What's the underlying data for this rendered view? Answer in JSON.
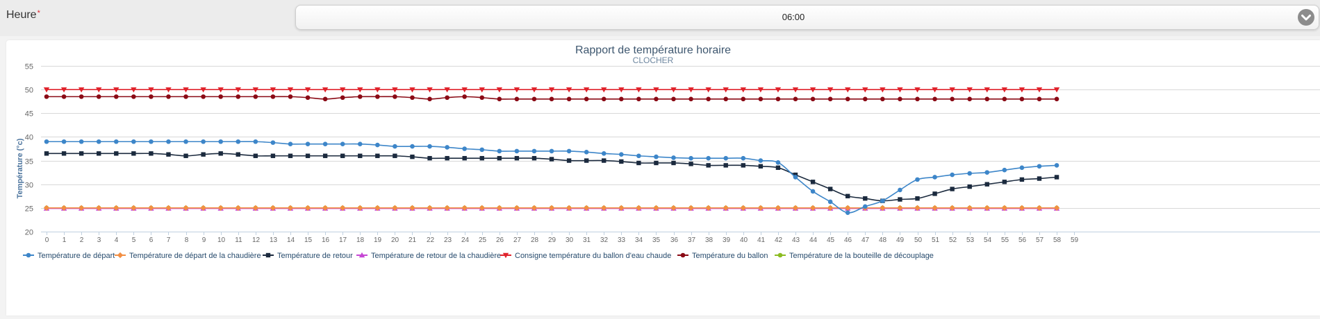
{
  "form": {
    "hour_label": "Heure",
    "required_mark": "*",
    "hour_value": "06:00",
    "chevron_icon": "chevron-down-icon"
  },
  "chart_data": {
    "type": "line",
    "title": "Rapport de température horaire",
    "subtitle": "CLOCHER",
    "xlabel": "",
    "ylabel": "Température (°c)",
    "x": [
      0,
      1,
      2,
      3,
      4,
      5,
      6,
      7,
      8,
      9,
      10,
      11,
      12,
      13,
      14,
      15,
      16,
      17,
      18,
      19,
      20,
      21,
      22,
      23,
      24,
      25,
      26,
      27,
      28,
      29,
      30,
      31,
      32,
      33,
      34,
      35,
      36,
      37,
      38,
      39,
      40,
      41,
      42,
      43,
      44,
      45,
      46,
      47,
      48,
      49,
      50,
      51,
      52,
      53,
      54,
      55,
      56,
      57,
      58
    ],
    "xticks": [
      0,
      1,
      2,
      3,
      4,
      5,
      6,
      7,
      8,
      9,
      10,
      11,
      12,
      13,
      14,
      15,
      16,
      17,
      18,
      19,
      20,
      21,
      22,
      23,
      24,
      25,
      26,
      27,
      28,
      29,
      30,
      31,
      32,
      33,
      34,
      35,
      36,
      37,
      38,
      39,
      40,
      41,
      42,
      43,
      44,
      45,
      46,
      47,
      48,
      49,
      50,
      51,
      52,
      53,
      54,
      55,
      56,
      57,
      58,
      59
    ],
    "xlim": [
      -0.5,
      59.5
    ],
    "ylim": [
      20,
      55
    ],
    "yticks": [
      20,
      25,
      30,
      35,
      40,
      45,
      50,
      55
    ],
    "grid": true,
    "legend_position": "bottom",
    "series": [
      {
        "name": "Température de la bouteille de découplage",
        "color": "#8bbc21",
        "marker": "circle",
        "values": [
          25,
          25,
          25,
          25,
          25,
          25,
          25,
          25,
          25,
          25,
          25,
          25,
          25,
          25,
          25,
          25,
          25,
          25,
          25,
          25,
          25,
          25,
          25,
          25,
          25,
          25,
          25,
          25,
          25,
          25,
          25,
          25,
          25,
          25,
          25,
          25,
          25,
          25,
          25,
          25,
          25,
          25,
          25,
          25,
          25,
          25,
          25,
          25,
          25,
          25,
          25,
          25,
          25,
          25,
          25,
          25,
          25,
          25,
          25
        ]
      },
      {
        "name": "Température de retour de la chaudière",
        "color": "#c646d4",
        "marker": "triangle",
        "values": [
          24.9,
          24.9,
          24.9,
          24.9,
          24.9,
          24.9,
          24.9,
          24.9,
          24.9,
          24.9,
          24.9,
          24.9,
          24.9,
          24.9,
          24.9,
          24.9,
          24.9,
          24.9,
          24.9,
          24.9,
          24.9,
          24.9,
          24.9,
          24.9,
          24.9,
          24.9,
          24.9,
          24.9,
          24.9,
          24.9,
          24.9,
          24.9,
          24.9,
          24.9,
          24.9,
          24.9,
          24.9,
          24.9,
          24.9,
          24.9,
          24.9,
          24.9,
          24.9,
          24.9,
          24.9,
          24.9,
          24.9,
          24.9,
          24.9,
          24.9,
          24.9,
          24.9,
          24.9,
          24.9,
          24.9,
          24.9,
          24.9,
          24.9,
          24.9
        ]
      },
      {
        "name": "Température de départ de la chaudière",
        "color": "#f28f43",
        "marker": "diamond",
        "values": [
          25,
          25,
          25,
          25,
          25,
          25,
          25,
          25,
          25,
          25,
          25,
          25,
          25,
          25,
          25,
          25,
          25,
          25,
          25,
          25,
          25,
          25,
          25,
          25,
          25,
          25,
          25,
          25,
          25,
          25,
          25,
          25,
          25,
          25,
          25,
          25,
          25,
          25,
          25,
          25,
          25,
          25,
          25,
          25,
          25,
          25,
          25,
          25,
          25,
          25,
          25,
          25,
          25,
          25,
          25,
          25,
          25,
          25,
          25
        ]
      },
      {
        "name": "Consigne température du ballon d'eau chaude",
        "color": "#e0232c",
        "marker": "triangle-down",
        "values": [
          50,
          50,
          50,
          50,
          50,
          50,
          50,
          50,
          50,
          50,
          50,
          50,
          50,
          50,
          50,
          50,
          50,
          50,
          50,
          50,
          50,
          50,
          50,
          50,
          50,
          50,
          50,
          50,
          50,
          50,
          50,
          50,
          50,
          50,
          50,
          50,
          50,
          50,
          50,
          50,
          50,
          50,
          50,
          50,
          50,
          50,
          50,
          50,
          50,
          50,
          50,
          50,
          50,
          50,
          50,
          50,
          50,
          50,
          50
        ]
      },
      {
        "name": "Température du ballon",
        "color": "#8a0a15",
        "marker": "circle",
        "values": [
          48.5,
          48.5,
          48.5,
          48.5,
          48.5,
          48.5,
          48.5,
          48.5,
          48.5,
          48.5,
          48.5,
          48.5,
          48.5,
          48.5,
          48.5,
          48.3,
          48,
          48.3,
          48.5,
          48.5,
          48.5,
          48.3,
          48,
          48.3,
          48.5,
          48.3,
          48,
          48,
          48,
          48,
          48,
          48,
          48,
          48,
          48,
          48,
          48,
          48,
          48,
          48,
          48,
          48,
          48,
          48,
          48,
          48,
          48,
          48,
          48,
          48,
          48,
          48,
          48,
          48,
          48,
          48,
          48,
          48,
          48
        ]
      },
      {
        "name": "Température de retour",
        "color": "#1b2a3e",
        "marker": "square",
        "values": [
          36.5,
          36.5,
          36.5,
          36.5,
          36.5,
          36.5,
          36.5,
          36.3,
          36,
          36.3,
          36.5,
          36.3,
          36,
          36,
          36,
          36,
          36,
          36,
          36,
          36,
          36,
          35.8,
          35.5,
          35.5,
          35.5,
          35.5,
          35.5,
          35.5,
          35.5,
          35.3,
          35,
          35,
          35,
          34.8,
          34.5,
          34.5,
          34.5,
          34.3,
          34,
          34,
          34,
          33.8,
          33.5,
          32,
          30.5,
          29,
          27.5,
          27,
          26.5,
          26.8,
          27,
          28,
          29,
          29.5,
          30,
          30.5,
          31,
          31.2,
          31.5
        ]
      },
      {
        "name": "Température de départ",
        "color": "#3d86c9",
        "marker": "circle",
        "values": [
          39,
          39,
          39,
          39,
          39,
          39,
          39,
          39,
          39,
          39,
          39,
          39,
          39,
          38.8,
          38.5,
          38.5,
          38.5,
          38.5,
          38.5,
          38.3,
          38,
          38,
          38,
          37.8,
          37.5,
          37.3,
          37,
          37,
          37,
          37,
          37,
          36.8,
          36.5,
          36.3,
          36,
          35.8,
          35.6,
          35.5,
          35.5,
          35.5,
          35.5,
          35,
          34.6,
          31.5,
          28.5,
          26.3,
          24,
          25.3,
          26.5,
          28.8,
          31,
          31.5,
          32,
          32.3,
          32.5,
          33,
          33.5,
          33.8,
          34
        ]
      }
    ],
    "legend_order": [
      "Température de départ",
      "Température de départ de la chaudière",
      "Température de retour",
      "Température de retour de la chaudière",
      "Consigne température du ballon d'eau chaude",
      "Température du ballon",
      "Température de la bouteille de découplage"
    ]
  }
}
